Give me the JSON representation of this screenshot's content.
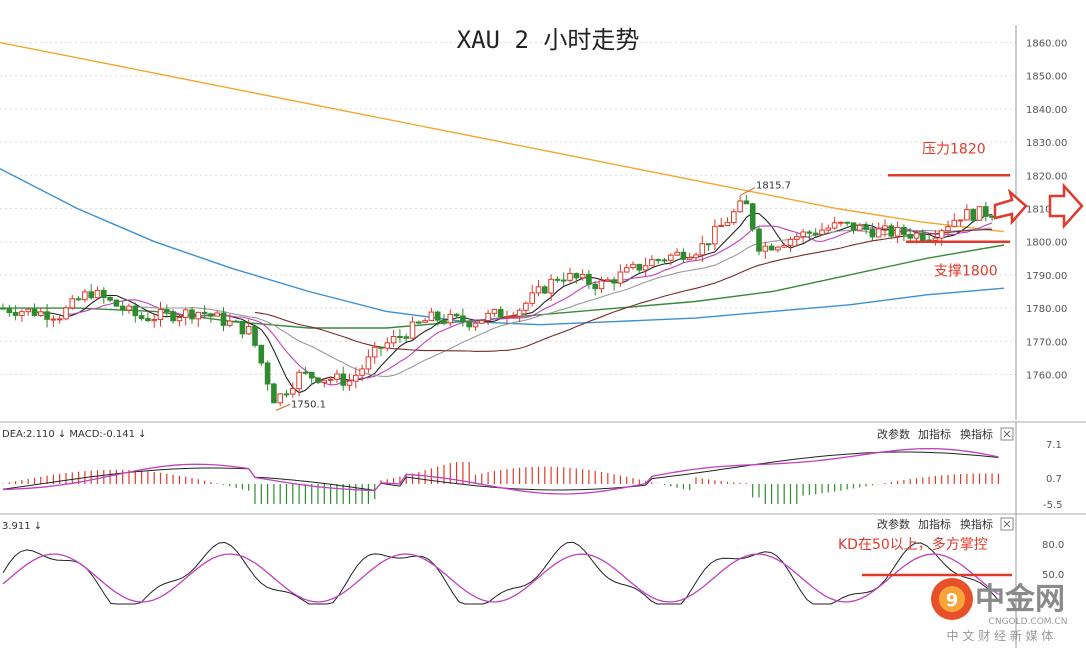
{
  "chart_data": [
    {
      "type": "line",
      "title": "XAU 2 小时走势",
      "ylim": [
        1748,
        1866
      ],
      "y_ticks": [
        "1860.00",
        "1850.00",
        "1840.00",
        "1830.00",
        "1820.00",
        "1810.00",
        "1800.00",
        "1790.00",
        "1780.00",
        "1770.00",
        "1760.00"
      ],
      "y_tick_values": [
        1860,
        1850,
        1840,
        1830,
        1820,
        1810,
        1800,
        1790,
        1780,
        1770,
        1760
      ],
      "grid": true,
      "series": [
        {
          "values": [
            1860,
            1855,
            1850,
            1845,
            1840,
            1835,
            1830,
            1825,
            1820,
            1815,
            1810,
            1806,
            1803
          ],
          "color": "#f0a830"
        },
        {
          "values": [
            1822,
            1810,
            1800,
            1792,
            1785,
            1779,
            1776,
            1775,
            1776,
            1777,
            1779,
            1781,
            1784,
            1786
          ],
          "color": "#3c8fd0"
        },
        {
          "values": [
            1780,
            1780,
            1779,
            1776,
            1774,
            1774,
            1776,
            1778,
            1780,
            1782,
            1785,
            1790,
            1795,
            1799
          ],
          "color": "#3a8a3a"
        }
      ],
      "annotations": {
        "resistance_label": "压力1820",
        "resistance_value": 1820,
        "support_label": "支撑1800",
        "support_value": 1800,
        "high_label": "1815.7",
        "high_value": 1815.7,
        "low_label": "1750.1",
        "low_value": 1750.1
      }
    },
    {
      "type": "bar",
      "indicator_label": "DEA:2.110 ↓ MACD:-0.141 ↓",
      "y_ticks": [
        "7.1",
        "0.7",
        "-5.5"
      ],
      "menu": [
        "改参数",
        "加指标",
        "换指标"
      ]
    },
    {
      "type": "line",
      "indicator_label": "3.911 ↓",
      "y_ticks": [
        "80.0",
        "50.0"
      ],
      "menu": [
        "改参数",
        "加指标",
        "换指标"
      ],
      "annotation": "KD在50以上，多方掌控"
    }
  ],
  "watermark": {
    "brand": "中金网",
    "domain": "CNGOLD.COM.CN",
    "tagline": "中 文 财 经 新 媒 体"
  },
  "colors": {
    "up": "#e03a2c",
    "down": "#2e8b2e",
    "accent": "#e03a2c"
  },
  "icons": [
    "arrow-right-icon",
    "close-icon",
    "logo-icon"
  ]
}
